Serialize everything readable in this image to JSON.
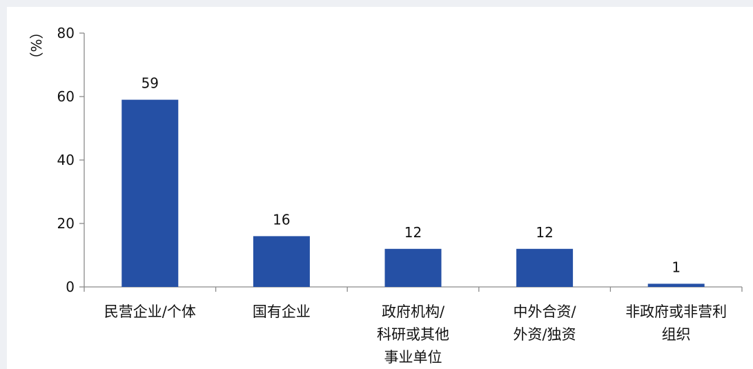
{
  "chart_data": {
    "type": "bar",
    "title": "",
    "xlabel": "",
    "ylabel": "",
    "unit_label": "（%）",
    "categories": [
      "民营企业/个体",
      "国有企业",
      "政府机构/\n科研或其他\n事业单位",
      "中外合资/\n外资/独资",
      "非政府或非营利\n组织"
    ],
    "values": [
      59,
      16,
      12,
      12,
      1
    ],
    "data_labels": [
      "59",
      "16",
      "12",
      "12",
      "1"
    ],
    "yticks": [
      0,
      20,
      40,
      60,
      80
    ],
    "ylim": [
      0,
      80
    ],
    "bar_color": "#2550a5",
    "grid": false,
    "legend": "none"
  }
}
